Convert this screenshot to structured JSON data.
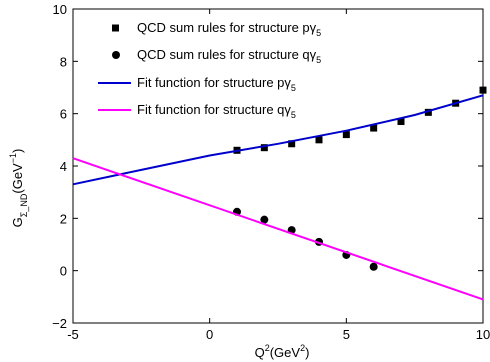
{
  "chart_data": {
    "type": "scatter",
    "title": "",
    "xlabel": "Q2(GeV2)",
    "ylabel": "GΣ_ND(GeV−1)",
    "xlabel_parts": {
      "base": "Q",
      "sup1": "2",
      "mid": "(GeV",
      "sup2": "2",
      "end": ")"
    },
    "ylabel_parts": {
      "base": "G",
      "sub": "Σ_ND",
      "mid": "(GeV",
      "sup": "−1",
      "end": ")"
    },
    "xlim": [
      -5,
      10
    ],
    "ylim": [
      -2,
      10
    ],
    "xticks": [
      -5,
      0,
      5,
      10
    ],
    "yticks": [
      -2,
      0,
      2,
      4,
      6,
      8,
      10
    ],
    "grid": false,
    "legend_position": "top-left",
    "series": [
      {
        "name": "QCD sum rules for structure pγ5",
        "kind": "scatter",
        "marker": "square",
        "color": "#000000",
        "x": [
          1,
          2,
          3,
          4,
          5,
          6,
          7,
          8,
          9,
          10
        ],
        "y": [
          4.6,
          4.7,
          4.85,
          5.0,
          5.2,
          5.45,
          5.7,
          6.05,
          6.4,
          6.9
        ]
      },
      {
        "name": "QCD sum rules for structure qγ5",
        "kind": "scatter",
        "marker": "circle",
        "color": "#000000",
        "x": [
          1,
          2,
          3,
          4,
          5,
          6
        ],
        "y": [
          2.25,
          1.95,
          1.55,
          1.1,
          0.6,
          0.15
        ]
      },
      {
        "name": "Fit function for structure pγ5",
        "kind": "line",
        "color": "#0000cc",
        "x": [
          -5,
          -2.5,
          0,
          2.5,
          5,
          7.5,
          10
        ],
        "y": [
          3.3,
          3.85,
          4.4,
          4.85,
          5.35,
          5.95,
          6.7
        ]
      },
      {
        "name": "Fit function for structure qγ5",
        "kind": "line",
        "color": "#ff00ff",
        "x": [
          -5,
          10
        ],
        "y": [
          4.3,
          -1.1
        ]
      }
    ],
    "legend": [
      {
        "prefix": "QCD sum rules for structure p",
        "greek": "γ",
        "sub": "5"
      },
      {
        "prefix": "QCD sum rules for structure q",
        "greek": "γ",
        "sub": "5"
      },
      {
        "prefix": "Fit function for structure p",
        "greek": "γ",
        "sub": "5"
      },
      {
        "prefix": "Fit function for structure q",
        "greek": "γ",
        "sub": "5"
      }
    ]
  }
}
